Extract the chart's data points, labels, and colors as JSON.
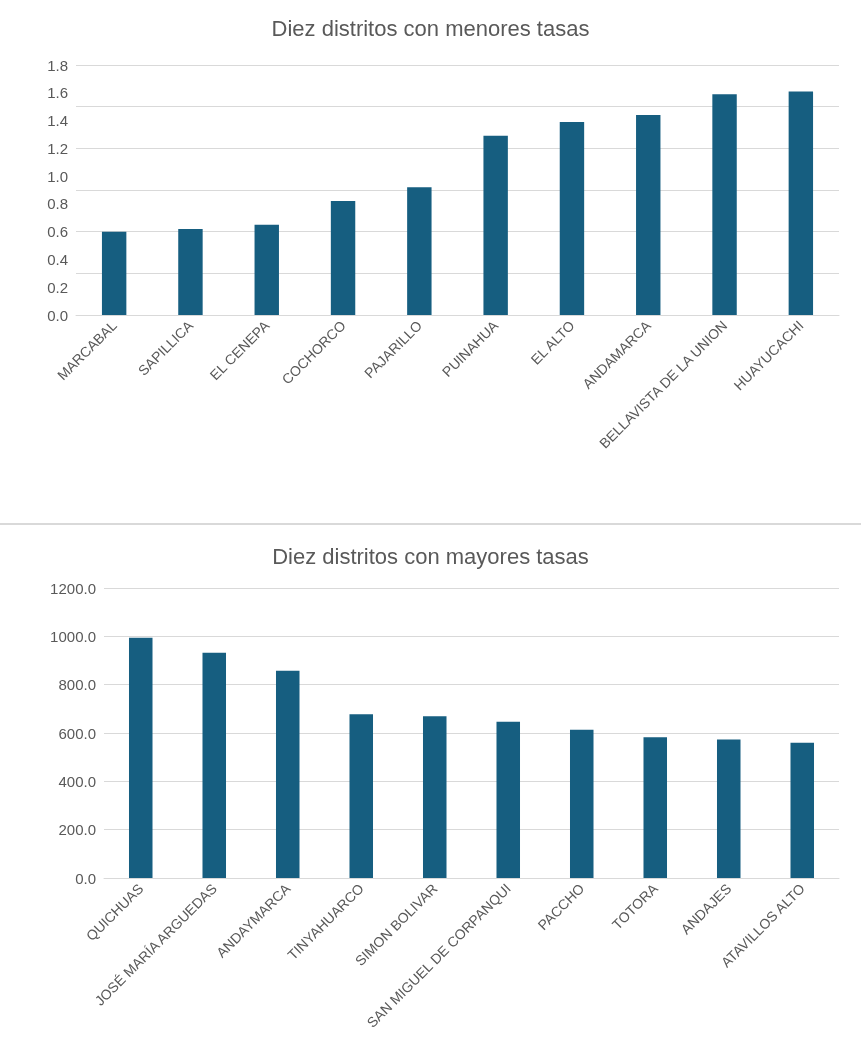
{
  "chart_data": [
    {
      "type": "bar",
      "title": "Diez distritos con menores tasas",
      "categories": [
        "MARCABAL",
        "SAPILLICA",
        "EL CENEPA",
        "COCHORCO",
        "PAJARILLO",
        "PUINAHUA",
        "EL ALTO",
        "ANDAMARCA",
        "BELLAVISTA DE LA UNION",
        "HUAYUCACHI"
      ],
      "values": [
        0.6,
        0.62,
        0.65,
        0.82,
        0.92,
        1.29,
        1.39,
        1.44,
        1.59,
        1.61
      ],
      "color": "#165e80",
      "ylim": [
        0,
        1.8
      ],
      "yticks": [
        {
          "value": 0,
          "label": "0.0"
        },
        {
          "value": 0.2,
          "label": "0.2"
        },
        {
          "value": 0.4,
          "label": "0.4"
        },
        {
          "value": 0.6,
          "label": "0.6"
        },
        {
          "value": 0.8,
          "label": "0.8"
        },
        {
          "value": 1.0,
          "label": "1.0"
        },
        {
          "value": 1.2,
          "label": "1.2"
        },
        {
          "value": 1.4,
          "label": "1.4"
        },
        {
          "value": 1.6,
          "label": "1.6"
        },
        {
          "value": 1.8,
          "label": "1.8"
        }
      ],
      "grid": "y"
    },
    {
      "type": "bar",
      "title": "Diez distritos con mayores tasas",
      "categories": [
        "QUICHUAS",
        "JOSÉ MARÍA ARGUEDAS",
        "ANDAYMARCA",
        "TINYAHUARCO",
        "SIMON BOLIVAR",
        "SAN MIGUEL DE CORPANQUI",
        "PACCHO",
        "TOTORA",
        "ANDAJES",
        "ATAVILLOS ALTO"
      ],
      "values": [
        994,
        932,
        858,
        678,
        669,
        647,
        613,
        582,
        573,
        560
      ],
      "color": "#165e80",
      "ylim": [
        0,
        1200
      ],
      "yticks": [
        {
          "value": 0,
          "label": "0.0"
        },
        {
          "value": 200,
          "label": "200.0"
        },
        {
          "value": 400,
          "label": "400.0"
        },
        {
          "value": 600,
          "label": "600.0"
        },
        {
          "value": 800,
          "label": "800.0"
        },
        {
          "value": 1000,
          "label": "1000.0"
        },
        {
          "value": 1200,
          "label": "1200.0"
        }
      ],
      "grid": "y"
    }
  ]
}
